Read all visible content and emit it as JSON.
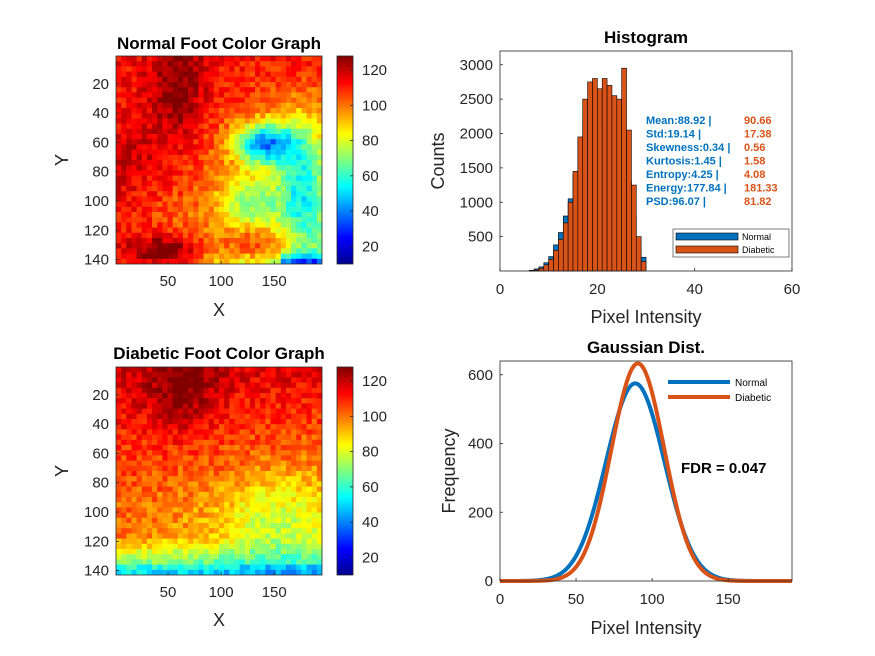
{
  "colors": {
    "normal": "#0072BD",
    "diabetic": "#D95319",
    "axis": "#262626"
  },
  "chart_data": [
    {
      "type": "heatmap",
      "title": "Normal Foot Color Graph",
      "xlabel": "X",
      "ylabel": "Y",
      "xticks": [
        "50",
        "100",
        "150"
      ],
      "xtick_values": [
        50,
        100,
        150
      ],
      "yticks": [
        "20",
        "40",
        "60",
        "80",
        "100",
        "120",
        "140"
      ],
      "ytick_values": [
        20,
        40,
        60,
        80,
        100,
        120,
        140
      ],
      "xlim": [
        1,
        195
      ],
      "ylim": [
        1,
        143
      ],
      "colorbar": {
        "ticks": [
          "20",
          "40",
          "60",
          "80",
          "100",
          "120"
        ],
        "tick_values": [
          20,
          40,
          60,
          80,
          100,
          120
        ],
        "range": [
          10,
          128
        ],
        "colormap": "jet"
      },
      "pattern": "normal"
    },
    {
      "type": "bar",
      "title": "Histogram",
      "xlabel": "Pixel Intensity",
      "ylabel": "Counts",
      "xlim": [
        0,
        60
      ],
      "ylim": [
        0,
        3200
      ],
      "xticks": [
        "0",
        "20",
        "40",
        "60"
      ],
      "xtick_values": [
        0,
        20,
        40,
        60
      ],
      "yticks": [
        "500",
        "1000",
        "1500",
        "2000",
        "2500",
        "3000"
      ],
      "ytick_values": [
        500,
        1000,
        1500,
        2000,
        2500,
        3000
      ],
      "bin_edges": [
        6,
        7,
        8,
        9,
        10,
        11,
        12,
        13,
        14,
        15,
        16,
        17,
        18,
        19,
        20,
        21,
        22,
        23,
        24,
        25,
        26,
        27,
        28,
        29,
        30
      ],
      "series": [
        {
          "name": "Normal",
          "values": [
            10,
            30,
            60,
            120,
            210,
            380,
            560,
            800,
            1050,
            1400,
            1900,
            2200,
            2250,
            2100,
            1900,
            2100,
            2050,
            2200,
            2000,
            1850,
            1300,
            800,
            320,
            200
          ]
        },
        {
          "name": "Diabetic",
          "values": [
            5,
            15,
            40,
            90,
            170,
            300,
            460,
            700,
            1000,
            1450,
            1950,
            2500,
            2750,
            2800,
            2650,
            2800,
            2700,
            2550,
            2500,
            2950,
            2050,
            1250,
            500,
            140
          ]
        }
      ],
      "stats_labels": [
        "Mean:88.92 |",
        "Std:19.14 |",
        "Skewness:0.34 |",
        "Kurtosis:1.45 |",
        "Entropy:4.25 |",
        "Energy:177.84 |",
        "PSD:96.07 |"
      ],
      "stats_diabetic": [
        "90.66",
        "17.38",
        "0.56",
        "1.58",
        "4.08",
        "181.33",
        "81.82"
      ],
      "legend": [
        "Normal",
        "Diabetic"
      ]
    },
    {
      "type": "heatmap",
      "title": "Diabetic Foot Color Graph",
      "xlabel": "X",
      "ylabel": "Y",
      "xticks": [
        "50",
        "100",
        "150"
      ],
      "xtick_values": [
        50,
        100,
        150
      ],
      "yticks": [
        "20",
        "40",
        "60",
        "80",
        "100",
        "120",
        "140"
      ],
      "ytick_values": [
        20,
        40,
        60,
        80,
        100,
        120,
        140
      ],
      "xlim": [
        1,
        195
      ],
      "ylim": [
        1,
        143
      ],
      "colorbar": {
        "ticks": [
          "20",
          "40",
          "60",
          "80",
          "100",
          "120"
        ],
        "tick_values": [
          20,
          40,
          60,
          80,
          100,
          120
        ],
        "range": [
          10,
          128
        ],
        "colormap": "jet"
      },
      "pattern": "diabetic"
    },
    {
      "type": "line",
      "title": "Gaussian Dist.",
      "xlabel": "Pixel Intensity",
      "ylabel": "Frequency",
      "xlim": [
        0,
        192
      ],
      "ylim": [
        0,
        640
      ],
      "xticks": [
        "0",
        "50",
        "100",
        "150"
      ],
      "xtick_values": [
        0,
        50,
        100,
        150
      ],
      "yticks": [
        "0",
        "200",
        "400",
        "600"
      ],
      "ytick_values": [
        0,
        200,
        400,
        600
      ],
      "series": [
        {
          "name": "Normal",
          "mean": 88.92,
          "std": 19.14,
          "peak": 575
        },
        {
          "name": "Diabetic",
          "mean": 90.66,
          "std": 17.38,
          "peak": 633
        }
      ],
      "annotation": "FDR = 0.047",
      "legend": [
        "Normal",
        "Diabetic"
      ]
    }
  ]
}
